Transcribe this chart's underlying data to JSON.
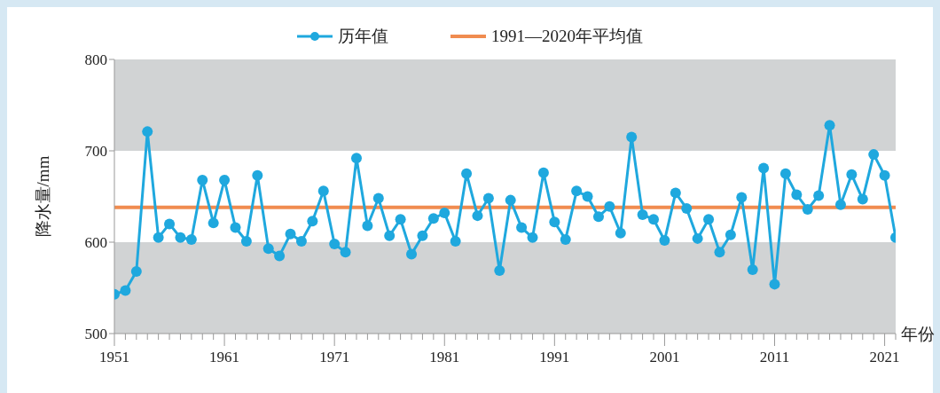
{
  "chart_data": {
    "type": "line",
    "ylabel": "降水量/mm",
    "xlabel": "年份",
    "x": [
      1951,
      1952,
      1953,
      1954,
      1955,
      1956,
      1957,
      1958,
      1959,
      1960,
      1961,
      1962,
      1963,
      1964,
      1965,
      1966,
      1967,
      1968,
      1969,
      1970,
      1971,
      1972,
      1973,
      1974,
      1975,
      1976,
      1977,
      1978,
      1979,
      1980,
      1981,
      1982,
      1983,
      1984,
      1985,
      1986,
      1987,
      1988,
      1989,
      1990,
      1991,
      1992,
      1993,
      1994,
      1995,
      1996,
      1997,
      1998,
      1999,
      2000,
      2001,
      2002,
      2003,
      2004,
      2005,
      2006,
      2007,
      2008,
      2009,
      2010,
      2011,
      2012,
      2013,
      2014,
      2015,
      2016,
      2017,
      2018,
      2019,
      2020,
      2021,
      2022
    ],
    "series": [
      {
        "name": "历年值",
        "color": "#1fa8de",
        "values": [
          543,
          547,
          568,
          721,
          605,
          620,
          605,
          603,
          668,
          621,
          668,
          616,
          601,
          673,
          593,
          585,
          609,
          601,
          623,
          656,
          598,
          589,
          692,
          618,
          648,
          607,
          625,
          587,
          607,
          626,
          632,
          601,
          675,
          629,
          648,
          569,
          646,
          616,
          605,
          676,
          622,
          603,
          656,
          650,
          628,
          639,
          610,
          715,
          630,
          625,
          602,
          654,
          637,
          604,
          625,
          589,
          608,
          649,
          570,
          681,
          554,
          675,
          652,
          636,
          651,
          728,
          641,
          674,
          647,
          696,
          673,
          605
        ]
      }
    ],
    "ref_lines": [
      {
        "axis": "y",
        "value": 638,
        "label": "1991—2020年平均值",
        "color": "#f08c50"
      }
    ],
    "xlim": [
      1951,
      2022
    ],
    "xticks": [
      1951,
      {
        "value": 1952,
        "label": null
      },
      {
        "value": 1953,
        "label": null
      },
      {
        "value": 1954,
        "label": null
      },
      {
        "value": 1955,
        "label": null
      },
      {
        "value": 1956,
        "label": null
      },
      {
        "value": 1957,
        "label": null
      },
      {
        "value": 1958,
        "label": null
      },
      {
        "value": 1959,
        "label": null
      },
      {
        "value": 1960,
        "label": null
      },
      1961,
      {
        "value": 1962,
        "label": null
      },
      {
        "value": 1963,
        "label": null
      },
      {
        "value": 1964,
        "label": null
      },
      {
        "value": 1965,
        "label": null
      },
      {
        "value": 1966,
        "label": null
      },
      {
        "value": 1967,
        "label": null
      },
      {
        "value": 1968,
        "label": null
      },
      {
        "value": 1969,
        "label": null
      },
      {
        "value": 1970,
        "label": null
      },
      1971,
      {
        "value": 1972,
        "label": null
      },
      {
        "value": 1973,
        "label": null
      },
      {
        "value": 1974,
        "label": null
      },
      {
        "value": 1975,
        "label": null
      },
      {
        "value": 1976,
        "label": null
      },
      {
        "value": 1977,
        "label": null
      },
      {
        "value": 1978,
        "label": null
      },
      {
        "value": 1979,
        "label": null
      },
      {
        "value": 1980,
        "label": null
      },
      1981,
      {
        "value": 1982,
        "label": null
      },
      {
        "value": 1983,
        "label": null
      },
      {
        "value": 1984,
        "label": null
      },
      {
        "value": 1985,
        "label": null
      },
      {
        "value": 1986,
        "label": null
      },
      {
        "value": 1987,
        "label": null
      },
      {
        "value": 1988,
        "label": null
      },
      {
        "value": 1989,
        "label": null
      },
      {
        "value": 1990,
        "label": null
      },
      1991,
      {
        "value": 1992,
        "label": null
      },
      {
        "value": 1993,
        "label": null
      },
      {
        "value": 1994,
        "label": null
      },
      {
        "value": 1995,
        "label": null
      },
      {
        "value": 1996,
        "label": null
      },
      {
        "value": 1997,
        "label": null
      },
      {
        "value": 1998,
        "label": null
      },
      {
        "value": 1999,
        "label": null
      },
      {
        "value": 2000,
        "label": null
      },
      2001,
      {
        "value": 2002,
        "label": null
      },
      {
        "value": 2003,
        "label": null
      },
      {
        "value": 2004,
        "label": null
      },
      {
        "value": 2005,
        "label": null
      },
      {
        "value": 2006,
        "label": null
      },
      {
        "value": 2007,
        "label": null
      },
      {
        "value": 2008,
        "label": null
      },
      {
        "value": 2009,
        "label": null
      },
      {
        "value": 2010,
        "label": null
      },
      2011,
      {
        "value": 2012,
        "label": null
      },
      {
        "value": 2013,
        "label": null
      },
      {
        "value": 2014,
        "label": null
      },
      {
        "value": 2015,
        "label": null
      },
      {
        "value": 2016,
        "label": null
      },
      {
        "value": 2017,
        "label": null
      },
      {
        "value": 2018,
        "label": null
      },
      {
        "value": 2019,
        "label": null
      },
      {
        "value": 2020,
        "label": null
      },
      2021,
      {
        "value": 2022,
        "label": null
      }
    ],
    "ylim": [
      500,
      800
    ],
    "yticks": [
      500,
      600,
      700,
      800
    ],
    "bands": [
      {
        "axis": "y",
        "from": 500,
        "to": 600,
        "color": "#d1d3d4"
      },
      {
        "axis": "y",
        "from": 700,
        "to": 800,
        "color": "#d1d3d4"
      }
    ],
    "legend": "top",
    "marker": "circle",
    "line_style": "solid"
  }
}
